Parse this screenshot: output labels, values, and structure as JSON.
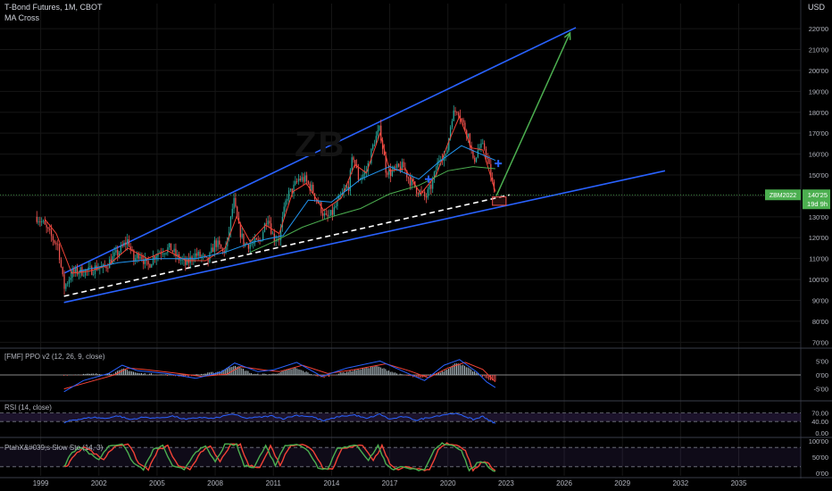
{
  "header": {
    "title": "T-Bond Futures, 1M, CBOT",
    "indicator": "MA Cross",
    "currency": "USD",
    "watermark": "ZB"
  },
  "panes": {
    "ppo": {
      "title": "[FMF] PPO v2 (12, 26, 9, close)",
      "ticks": [
        "5'00",
        "0'00",
        "-5'00"
      ]
    },
    "rsi": {
      "title": "RSI (14, close)",
      "ticks": [
        "70.00",
        "40.00",
        "0.00"
      ]
    },
    "sto": {
      "title": "PtahX&#039;s Slow Sto (14, 3)",
      "ticks": [
        "100'00",
        "50'00",
        "0'00"
      ]
    }
  },
  "price_label": {
    "symbol": "ZBM2022",
    "price": "140'25",
    "countdown": "19d 9h"
  },
  "colors": {
    "background": "#000000",
    "up": "#26a69a",
    "down": "#ef5350",
    "trendline": "#2962ff",
    "arrow": "#4caf50",
    "ma_fast": "#f44336",
    "ma_mid": "#2196f3",
    "ma_slow": "#4caf50",
    "label_green": "#4caf50"
  },
  "chart_data": {
    "type": "candlestick",
    "title": "T-Bond Futures, 1M, CBOT",
    "x_ticks": [
      "1999",
      "2002",
      "2005",
      "2008",
      "2011",
      "2014",
      "2017",
      "2020",
      "2023",
      "2026",
      "2029",
      "2032",
      "2035"
    ],
    "y_ticks": [
      "220'00",
      "210'00",
      "200'00",
      "190'00",
      "180'00",
      "170'00",
      "160'00",
      "150'00",
      "140'00",
      "130'00",
      "120'00",
      "110'00",
      "100'00",
      "90'00",
      "80'00",
      "70'00"
    ],
    "ylim": [
      68,
      232
    ],
    "xlim": [
      1996.9,
      2038.2
    ],
    "close_path": [
      [
        1998.8,
        130
      ],
      [
        1999.1,
        127
      ],
      [
        1999.5,
        121
      ],
      [
        1999.9,
        116
      ],
      [
        2000.2,
        96
      ],
      [
        2000.6,
        103
      ],
      [
        2001.0,
        104
      ],
      [
        2001.5,
        104
      ],
      [
        2001.9,
        106
      ],
      [
        2002.2,
        105
      ],
      [
        2002.7,
        110
      ],
      [
        2003.1,
        114
      ],
      [
        2003.5,
        119
      ],
      [
        2003.8,
        109
      ],
      [
        2004.1,
        113
      ],
      [
        2004.5,
        106
      ],
      [
        2004.9,
        112
      ],
      [
        2005.3,
        114
      ],
      [
        2005.7,
        115
      ],
      [
        2006.0,
        111
      ],
      [
        2006.5,
        107
      ],
      [
        2006.9,
        112
      ],
      [
        2007.3,
        111
      ],
      [
        2007.6,
        108
      ],
      [
        2008.0,
        118
      ],
      [
        2008.4,
        113
      ],
      [
        2008.6,
        116
      ],
      [
        2008.95,
        138
      ],
      [
        2009.2,
        125
      ],
      [
        2009.5,
        117
      ],
      [
        2009.9,
        117
      ],
      [
        2010.3,
        118
      ],
      [
        2010.7,
        131
      ],
      [
        2011.0,
        120
      ],
      [
        2011.3,
        120
      ],
      [
        2011.7,
        140
      ],
      [
        2012.0,
        143
      ],
      [
        2012.3,
        148
      ],
      [
        2012.6,
        148
      ],
      [
        2013.0,
        143
      ],
      [
        2013.4,
        135
      ],
      [
        2013.7,
        129
      ],
      [
        2014.0,
        131
      ],
      [
        2014.5,
        140
      ],
      [
        2014.9,
        145
      ],
      [
        2015.1,
        160
      ],
      [
        2015.4,
        148
      ],
      [
        2015.8,
        152
      ],
      [
        2016.2,
        166
      ],
      [
        2016.5,
        172
      ],
      [
        2016.8,
        153
      ],
      [
        2017.0,
        151
      ],
      [
        2017.4,
        153
      ],
      [
        2017.7,
        154
      ],
      [
        2018.0,
        148
      ],
      [
        2018.4,
        143
      ],
      [
        2018.85,
        139
      ],
      [
        2019.2,
        146
      ],
      [
        2019.6,
        160
      ],
      [
        2019.9,
        158
      ],
      [
        2020.2,
        178
      ],
      [
        2020.5,
        182
      ],
      [
        2020.8,
        174
      ],
      [
        2021.1,
        168
      ],
      [
        2021.3,
        156
      ],
      [
        2021.6,
        163
      ],
      [
        2021.9,
        163
      ],
      [
        2022.1,
        155
      ],
      [
        2022.4,
        141
      ],
      [
        2022.45,
        140.5
      ]
    ],
    "series": [
      {
        "name": "MA fast",
        "type": "line",
        "points": [
          [
            1999.2,
            129
          ],
          [
            1999.8,
            122
          ],
          [
            2000.6,
            103
          ],
          [
            2001.5,
            104
          ],
          [
            2002.5,
            107
          ],
          [
            2003.5,
            115
          ],
          [
            2004.5,
            110
          ],
          [
            2005.5,
            114
          ],
          [
            2006.5,
            109
          ],
          [
            2007.5,
            109
          ],
          [
            2008.5,
            115
          ],
          [
            2009.1,
            130
          ],
          [
            2009.8,
            118
          ],
          [
            2010.6,
            126
          ],
          [
            2011.3,
            122
          ],
          [
            2012.0,
            142
          ],
          [
            2012.7,
            146
          ],
          [
            2013.6,
            133
          ],
          [
            2014.5,
            139
          ],
          [
            2015.2,
            155
          ],
          [
            2015.8,
            151
          ],
          [
            2016.5,
            170
          ],
          [
            2017.0,
            152
          ],
          [
            2017.8,
            153
          ],
          [
            2018.6,
            141
          ],
          [
            2019.4,
            150
          ],
          [
            2020.0,
            165
          ],
          [
            2020.6,
            178
          ],
          [
            2021.2,
            163
          ],
          [
            2021.8,
            162
          ],
          [
            2022.45,
            142
          ]
        ]
      },
      {
        "name": "MA mid",
        "type": "line",
        "points": [
          [
            2001.0,
            104
          ],
          [
            2003.0,
            108
          ],
          [
            2005.0,
            110
          ],
          [
            2007.0,
            110
          ],
          [
            2008.5,
            113
          ],
          [
            2010.0,
            118
          ],
          [
            2011.5,
            121
          ],
          [
            2012.8,
            138
          ],
          [
            2014.0,
            137
          ],
          [
            2015.5,
            148
          ],
          [
            2017.0,
            154
          ],
          [
            2018.5,
            148
          ],
          [
            2019.5,
            156
          ],
          [
            2020.7,
            164
          ],
          [
            2021.7,
            160
          ],
          [
            2022.45,
            157
          ]
        ]
      },
      {
        "name": "MA slow",
        "type": "line",
        "points": [
          [
            2009.8,
            113
          ],
          [
            2011.0,
            118
          ],
          [
            2012.5,
            125
          ],
          [
            2014.0,
            130
          ],
          [
            2015.5,
            134
          ],
          [
            2017.0,
            141
          ],
          [
            2018.5,
            145
          ],
          [
            2020.0,
            152
          ],
          [
            2021.3,
            154
          ],
          [
            2022.45,
            153
          ]
        ]
      },
      {
        "name": "upper channel",
        "type": "trendline",
        "points": [
          [
            2000.2,
            103
          ],
          [
            2026.6,
            220.5
          ]
        ]
      },
      {
        "name": "lower channel",
        "type": "trendline",
        "points": [
          [
            2000.2,
            89
          ],
          [
            2031.2,
            152
          ]
        ]
      },
      {
        "name": "median dashed",
        "type": "trendline",
        "points": [
          [
            2000.2,
            92
          ],
          [
            2023.2,
            140.5
          ]
        ]
      },
      {
        "name": "target arrow",
        "type": "arrow",
        "points": [
          [
            2022.5,
            140
          ],
          [
            2026.3,
            218
          ]
        ]
      }
    ],
    "markers": [
      {
        "type": "plus",
        "x": 2022.6,
        "y": 155.5
      },
      {
        "type": "plus",
        "x": 2019.0,
        "y": 148
      },
      {
        "type": "box",
        "x0": 2022.3,
        "x1": 2023.0,
        "y0": 135.5,
        "y1": 139.5
      }
    ],
    "ppo": {
      "ylim": [
        -8,
        8
      ],
      "hist": [
        [
          2000.2,
          0
        ],
        [
          2002.7,
          0.5
        ],
        [
          2003.3,
          2.2
        ],
        [
          2004.0,
          0.6
        ],
        [
          2005.0,
          0.2
        ],
        [
          2006.5,
          -0.5
        ],
        [
          2008.2,
          1.2
        ],
        [
          2009.0,
          3.5
        ],
        [
          2010.0,
          0.2
        ],
        [
          2011.0,
          0.3
        ],
        [
          2012.1,
          2.5
        ],
        [
          2013.5,
          -1
        ],
        [
          2014.8,
          1.2
        ],
        [
          2016.3,
          3.2
        ],
        [
          2017.5,
          0.2
        ],
        [
          2018.6,
          -1.2
        ],
        [
          2019.8,
          1.5
        ],
        [
          2020.5,
          4.5
        ],
        [
          2021.4,
          1.0
        ],
        [
          2022.0,
          -1.2
        ],
        [
          2022.45,
          -2.4
        ]
      ],
      "line": [
        [
          2000.2,
          -6
        ],
        [
          2001.2,
          -2
        ],
        [
          2002.5,
          0.5
        ],
        [
          2003.2,
          3.5
        ],
        [
          2004.0,
          1.5
        ],
        [
          2005.5,
          0.5
        ],
        [
          2007.0,
          -1.2
        ],
        [
          2008.3,
          1.0
        ],
        [
          2009.0,
          4.3
        ],
        [
          2010.2,
          1.2
        ],
        [
          2011.0,
          1.8
        ],
        [
          2012.2,
          4.5
        ],
        [
          2013.5,
          -0.5
        ],
        [
          2014.8,
          2.5
        ],
        [
          2016.5,
          5.0
        ],
        [
          2017.8,
          1.0
        ],
        [
          2018.8,
          -2.0
        ],
        [
          2019.8,
          3.5
        ],
        [
          2020.6,
          5.5
        ],
        [
          2021.5,
          1.0
        ],
        [
          2022.0,
          -2.5
        ],
        [
          2022.45,
          -4.5
        ]
      ],
      "signal": [
        [
          2000.2,
          -5
        ],
        [
          2001.5,
          -2.5
        ],
        [
          2002.8,
          0
        ],
        [
          2003.5,
          2.5
        ],
        [
          2004.3,
          2.0
        ],
        [
          2005.8,
          0.8
        ],
        [
          2007.3,
          -0.5
        ],
        [
          2008.6,
          0.3
        ],
        [
          2009.3,
          3.0
        ],
        [
          2010.5,
          1.8
        ],
        [
          2011.3,
          1.2
        ],
        [
          2012.5,
          3.5
        ],
        [
          2013.8,
          0.5
        ],
        [
          2015.1,
          1.8
        ],
        [
          2016.8,
          4.0
        ],
        [
          2018.0,
          1.5
        ],
        [
          2019.0,
          -1.0
        ],
        [
          2020.0,
          2.5
        ],
        [
          2020.9,
          4.5
        ],
        [
          2021.8,
          2.0
        ],
        [
          2022.45,
          -2.5
        ]
      ]
    },
    "rsi": {
      "ylim": [
        0,
        100
      ],
      "band": [
        40,
        70
      ],
      "line": [
        [
          2000.2,
          35
        ],
        [
          2000.6,
          45
        ],
        [
          2001.0,
          48
        ],
        [
          2001.7,
          55
        ],
        [
          2002.3,
          51
        ],
        [
          2003.0,
          60
        ],
        [
          2003.6,
          47
        ],
        [
          2004.3,
          55
        ],
        [
          2005.0,
          52
        ],
        [
          2005.8,
          59
        ],
        [
          2006.5,
          47
        ],
        [
          2007.2,
          55
        ],
        [
          2007.9,
          50
        ],
        [
          2008.9,
          67
        ],
        [
          2009.5,
          52
        ],
        [
          2010.3,
          55
        ],
        [
          2010.9,
          60
        ],
        [
          2011.5,
          50
        ],
        [
          2012.2,
          62
        ],
        [
          2013.0,
          57
        ],
        [
          2013.6,
          42
        ],
        [
          2014.4,
          58
        ],
        [
          2015.2,
          63
        ],
        [
          2015.8,
          50
        ],
        [
          2016.5,
          66
        ],
        [
          2017.0,
          48
        ],
        [
          2017.7,
          57
        ],
        [
          2018.4,
          45
        ],
        [
          2018.9,
          53
        ],
        [
          2019.7,
          63
        ],
        [
          2020.3,
          69
        ],
        [
          2020.9,
          58
        ],
        [
          2021.3,
          47
        ],
        [
          2021.8,
          58
        ],
        [
          2022.2,
          42
        ],
        [
          2022.45,
          33
        ]
      ]
    },
    "sto": {
      "ylim": [
        0,
        100
      ],
      "levels": [
        80,
        20
      ],
      "points": [
        [
          2000.2,
          20
        ],
        [
          2000.5,
          55
        ],
        [
          2001.0,
          84
        ],
        [
          2001.5,
          62
        ],
        [
          2002.0,
          42
        ],
        [
          2002.5,
          85
        ],
        [
          2003.2,
          92
        ],
        [
          2003.8,
          30
        ],
        [
          2004.3,
          12
        ],
        [
          2004.8,
          72
        ],
        [
          2005.3,
          85
        ],
        [
          2005.8,
          20
        ],
        [
          2006.4,
          12
        ],
        [
          2007.0,
          68
        ],
        [
          2007.5,
          82
        ],
        [
          2008.0,
          35
        ],
        [
          2008.5,
          88
        ],
        [
          2009.1,
          88
        ],
        [
          2009.5,
          22
        ],
        [
          2010.0,
          20
        ],
        [
          2010.6,
          85
        ],
        [
          2011.1,
          25
        ],
        [
          2011.6,
          88
        ],
        [
          2012.2,
          90
        ],
        [
          2012.8,
          70
        ],
        [
          2013.3,
          18
        ],
        [
          2013.8,
          12
        ],
        [
          2014.3,
          80
        ],
        [
          2014.8,
          80
        ],
        [
          2015.3,
          88
        ],
        [
          2015.9,
          40
        ],
        [
          2016.4,
          86
        ],
        [
          2016.8,
          30
        ],
        [
          2017.2,
          10
        ],
        [
          2017.7,
          22
        ],
        [
          2018.2,
          12
        ],
        [
          2018.8,
          8
        ],
        [
          2019.3,
          72
        ],
        [
          2019.7,
          92
        ],
        [
          2020.2,
          88
        ],
        [
          2020.7,
          72
        ],
        [
          2021.1,
          8
        ],
        [
          2021.5,
          30
        ],
        [
          2021.9,
          35
        ],
        [
          2022.2,
          12
        ],
        [
          2022.45,
          6
        ]
      ]
    }
  }
}
